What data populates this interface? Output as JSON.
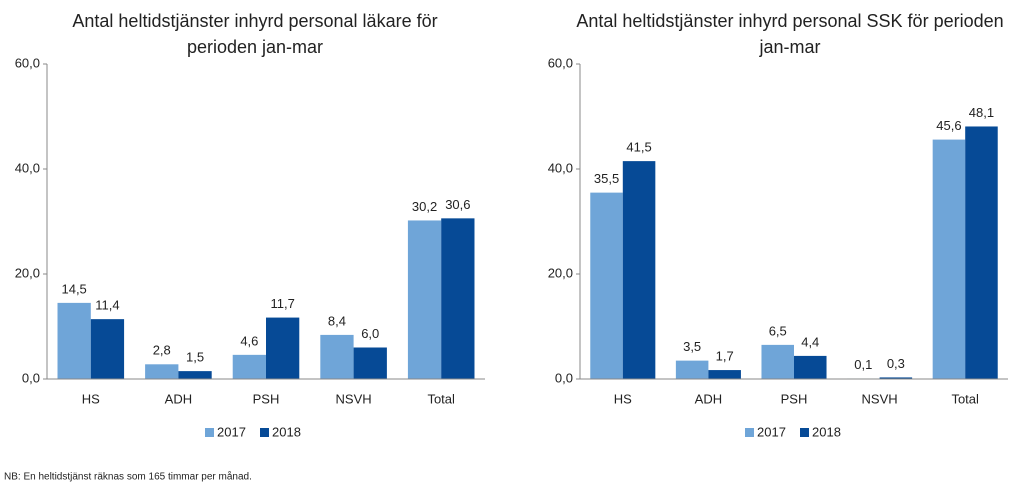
{
  "chart_data": [
    {
      "type": "bar",
      "title": [
        "Antal heltidstjänster inhyrd personal läkare för",
        "perioden jan-mar"
      ],
      "categories": [
        "HS",
        "ADH",
        "PSH",
        "NSVH",
        "Total"
      ],
      "series": [
        {
          "name": "2017",
          "color": "#6fa5d8",
          "values": [
            14.5,
            2.8,
            4.6,
            8.4,
            30.2
          ],
          "value_labels": [
            "14,5",
            "2,8",
            "4,6",
            "8,4",
            "30,2"
          ]
        },
        {
          "name": "2018",
          "color": "#064a96",
          "values": [
            11.4,
            1.5,
            11.7,
            6.0,
            30.6
          ],
          "value_labels": [
            "11,4",
            "1,5",
            "11,7",
            "6,0",
            "30,6"
          ]
        }
      ],
      "ylim": [
        0,
        60
      ],
      "yticks": [
        {
          "value": 0,
          "label": "0,0"
        },
        {
          "value": 20,
          "label": "20,0"
        },
        {
          "value": 40,
          "label": "40,0"
        },
        {
          "value": 60,
          "label": "60,0"
        }
      ],
      "legend": "bottom"
    },
    {
      "type": "bar",
      "title": [
        "Antal heltidstjänster inhyrd personal SSK för perioden",
        "jan-mar"
      ],
      "categories": [
        "HS",
        "ADH",
        "PSH",
        "NSVH",
        "Total"
      ],
      "series": [
        {
          "name": "2017",
          "color": "#6fa5d8",
          "values": [
            35.5,
            3.5,
            6.5,
            0.1,
            45.6
          ],
          "value_labels": [
            "35,5",
            "3,5",
            "6,5",
            "0,1",
            "45,6"
          ]
        },
        {
          "name": "2018",
          "color": "#064a96",
          "values": [
            41.5,
            1.7,
            4.4,
            0.3,
            48.1
          ],
          "value_labels": [
            "41,5",
            "1,7",
            "4,4",
            "0,3",
            "48,1"
          ]
        }
      ],
      "ylim": [
        0,
        60
      ],
      "yticks": [
        {
          "value": 0,
          "label": "0,0"
        },
        {
          "value": 20,
          "label": "20,0"
        },
        {
          "value": 40,
          "label": "40,0"
        },
        {
          "value": 60,
          "label": "60,0"
        }
      ],
      "legend": "bottom"
    }
  ],
  "note": "NB: En heltidstjänst räknas som 165 timmar per månad."
}
